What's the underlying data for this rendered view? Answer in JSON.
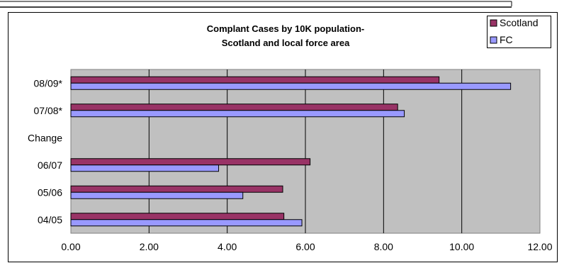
{
  "chart_data": {
    "type": "bar",
    "orientation": "horizontal",
    "title": [
      "Complant Cases by 10K population-",
      "Scotland and local force area"
    ],
    "categories": [
      "08/09*",
      "07/08*",
      "Change",
      "06/07",
      "05/06",
      "04/05"
    ],
    "series": [
      {
        "name": "Scotland",
        "color": "#993366",
        "values": [
          9.42,
          8.36,
          null,
          6.12,
          5.42,
          5.45
        ]
      },
      {
        "name": "FC",
        "color": "#9999ff",
        "values": [
          11.25,
          8.53,
          null,
          3.78,
          4.4,
          5.91
        ]
      }
    ],
    "x_ticks": [
      "0.00",
      "2.00",
      "4.00",
      "6.00",
      "8.00",
      "10.00",
      "12.00"
    ],
    "xlim": [
      0,
      12
    ],
    "grid": true,
    "plot_background": "#c0c0c0",
    "legend_position": "top-right"
  }
}
